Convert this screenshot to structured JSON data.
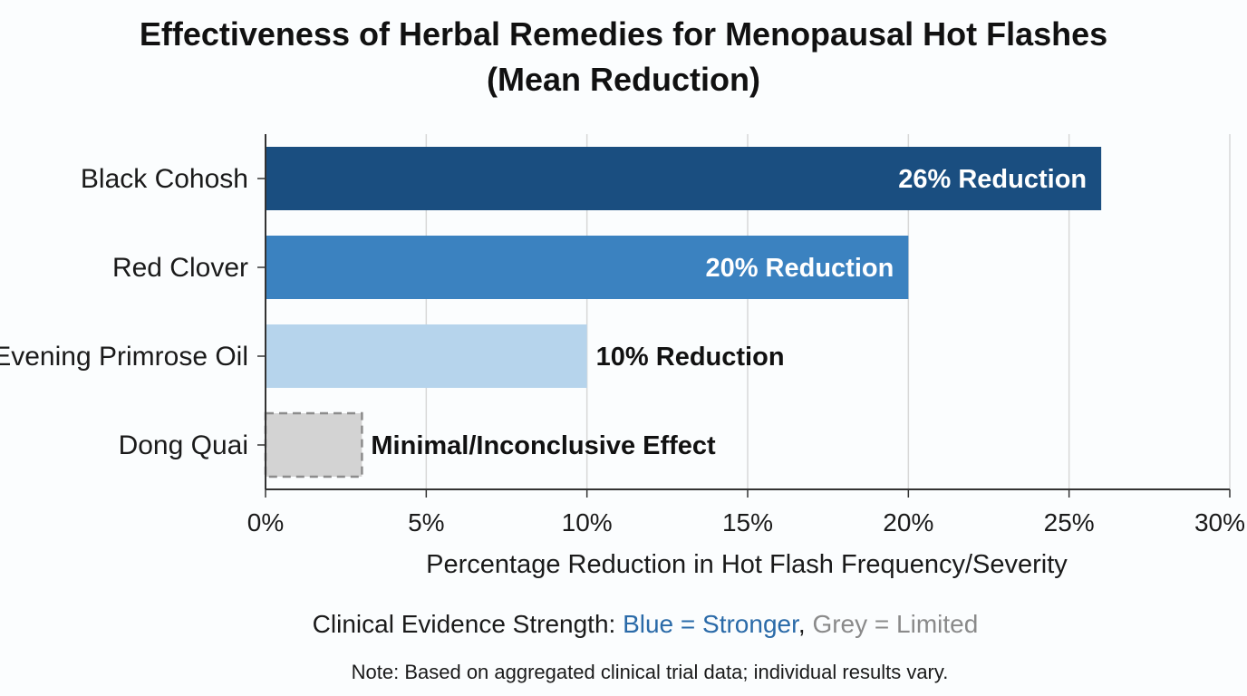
{
  "chart_data": {
    "type": "bar",
    "orientation": "horizontal",
    "title_lines": [
      "Effectiveness of Herbal Remedies for Menopausal Hot Flashes",
      "(Mean Reduction)"
    ],
    "categories": [
      "Black Cohosh",
      "Red Clover",
      "Evening Primrose Oil",
      "Dong Quai"
    ],
    "values": [
      26,
      20,
      10,
      3
    ],
    "data_labels": [
      "26% Reduction",
      "20% Reduction",
      "10% Reduction",
      "Minimal/Inconclusive Effect"
    ],
    "bar_colors": [
      "#1a4e80",
      "#3b82c0",
      "#b6d4ec",
      "#d3d3d3"
    ],
    "label_colors": [
      "#ffffff",
      "#ffffff",
      "#111111",
      "#111111"
    ],
    "label_inside": [
      true,
      true,
      false,
      false
    ],
    "dashed_outline": [
      false,
      false,
      false,
      true
    ],
    "xlabel": "Percentage Reduction in Hot Flash Frequency/Severity",
    "xlim": [
      0,
      30
    ],
    "xticks": [
      0,
      5,
      10,
      15,
      20,
      25,
      30
    ],
    "xtick_labels": [
      "0%",
      "5%",
      "10%",
      "15%",
      "20%",
      "25%",
      "30%"
    ],
    "grid": "vertical",
    "legend": {
      "prefix": "Clinical Evidence Strength: ",
      "blue_text": "Blue = Stronger",
      "separator": ", ",
      "grey_text": "Grey = Limited",
      "blue_color": "#2a6aa8",
      "grey_color": "#8a8a8a"
    },
    "note": "Note: Based on aggregated clinical trial data; individual results vary."
  }
}
